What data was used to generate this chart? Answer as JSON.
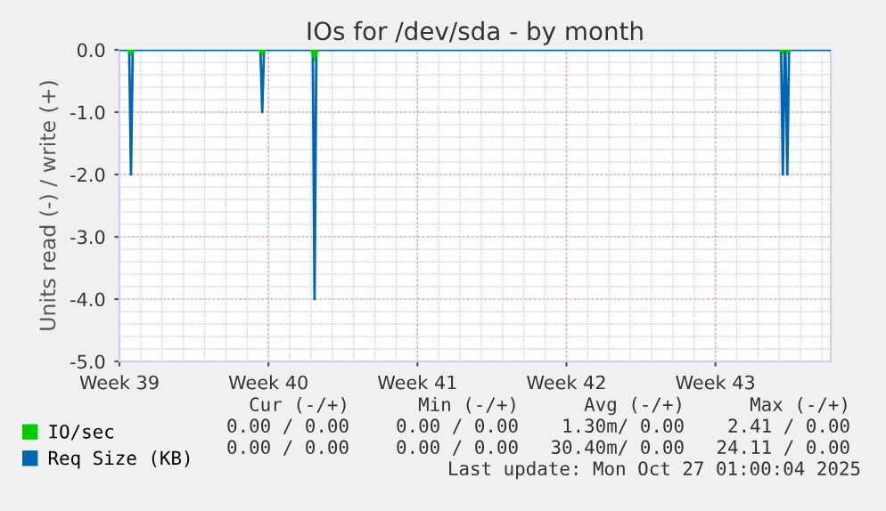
{
  "chart_data": {
    "type": "line",
    "title": "IOs for /dev/sda - by month",
    "ylabel": "Units read (-) / write (+)",
    "x": [
      "2025-09-22T00:00",
      "2025-09-22T11:00",
      "2025-09-22T13:00",
      "2025-09-22T15:00",
      "2025-09-28T15:00",
      "2025-09-28T17:00",
      "2025-09-28T19:00",
      "2025-10-01T02:00",
      "2025-10-01T04:00",
      "2025-10-01T06:00",
      "2025-10-23T02:00",
      "2025-10-23T04:00",
      "2025-10-23T06:00",
      "2025-10-23T07:00",
      "2025-10-23T09:00",
      "2025-10-23T11:00",
      "2025-10-25T10:00"
    ],
    "series": [
      {
        "name": "IO/sec",
        "type": "area",
        "color": "#00cc00",
        "x": [
          "2025-09-22T08:00",
          "2025-09-22T13:00",
          "2025-09-22T18:00",
          "2025-09-28T12:00",
          "2025-09-28T17:00",
          "2025-09-28T22:00",
          "2025-09-30T23:00",
          "2025-10-01T04:00",
          "2025-10-01T09:00",
          "2025-10-22T23:00",
          "2025-10-23T04:00",
          "2025-10-23T06:30",
          "2025-10-23T09:00",
          "2025-10-23T14:00"
        ],
        "values": [
          0,
          -0.1,
          0,
          0,
          -0.1,
          0,
          0,
          -0.2,
          0,
          0,
          -0.07,
          0,
          -0.07,
          0
        ]
      },
      {
        "name": "Req Size (KB)",
        "color": "#0066b3",
        "values": [
          0,
          0,
          -2.0,
          0,
          0,
          -1.0,
          0,
          0,
          -4.0,
          0,
          0,
          -2.0,
          0,
          0,
          -2.0,
          0,
          0
        ]
      }
    ],
    "xlim": [
      "2025-09-22T00:00",
      "2025-10-25T10:00"
    ],
    "xticks": [
      {
        "value": "2025-09-22",
        "label": "Week 39"
      },
      {
        "value": "2025-09-29",
        "label": "Week 40"
      },
      {
        "value": "2025-10-06",
        "label": "Week 41"
      },
      {
        "value": "2025-10-13",
        "label": "Week 42"
      },
      {
        "value": "2025-10-20",
        "label": "Week 43"
      }
    ],
    "ylim": [
      -5.0,
      0.0
    ],
    "yticks": [
      {
        "value": -5,
        "label": "-5.0"
      },
      {
        "value": -4,
        "label": "-4.0"
      },
      {
        "value": -3,
        "label": "-3.0"
      },
      {
        "value": -2,
        "label": "-2.0"
      },
      {
        "value": -1,
        "label": "-1.0"
      },
      {
        "value": 0,
        "label": "0.0"
      }
    ],
    "grid": true,
    "legend": "bottom",
    "annotations": [
      "Cur (-/+)",
      "Min (-/+)",
      "Avg (-/+)",
      "Max (-/+)",
      "0.00 / 0.00",
      "0.00 / 0.00",
      "1.30m/ 0.00",
      "2.41 / 0.00",
      "0.00 / 0.00",
      "0.00 / 0.00",
      "30.40m/ 0.00",
      "24.11 / 0.00",
      "Last update: Mon Oct 27 01:00:04 2025"
    ]
  }
}
